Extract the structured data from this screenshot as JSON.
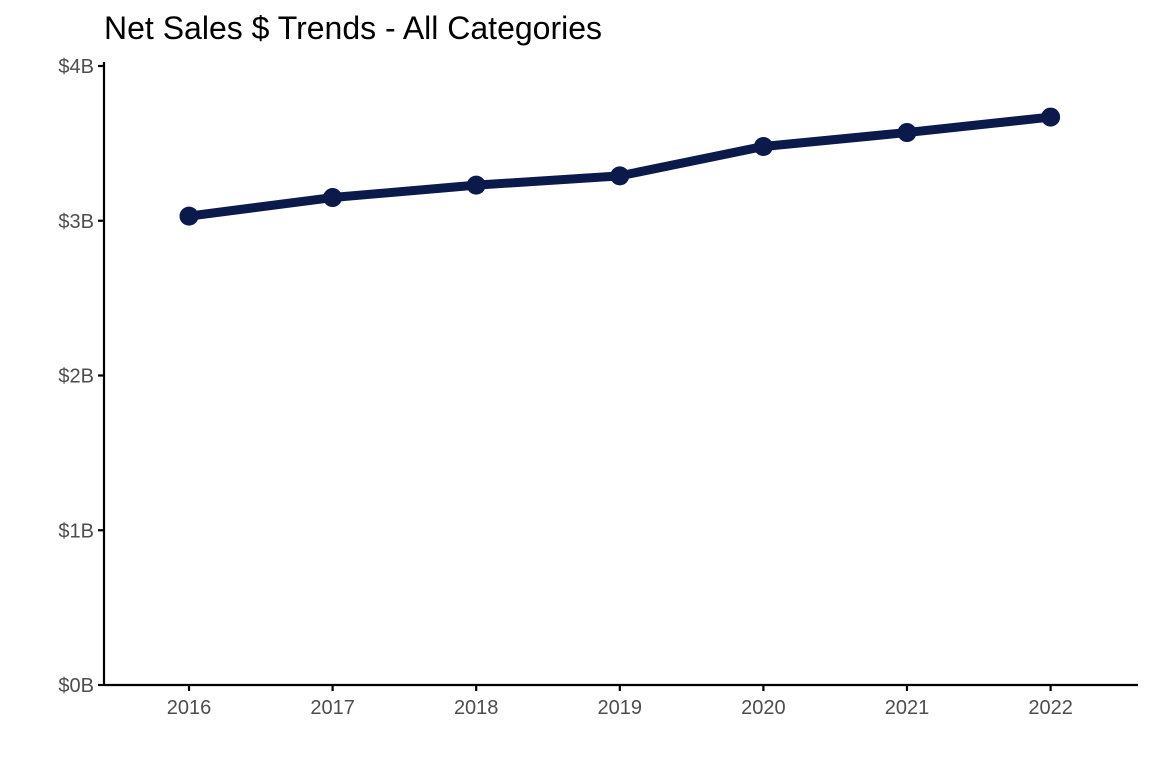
{
  "chart_data": {
    "type": "line",
    "title": "Net Sales $ Trends - All Categories",
    "xlabel": "",
    "ylabel": "",
    "x": [
      "2016",
      "2017",
      "2018",
      "2019",
      "2020",
      "2021",
      "2022"
    ],
    "series": [
      {
        "values": [
          3.03,
          3.15,
          3.23,
          3.29,
          3.48,
          3.57,
          3.67
        ],
        "color": "#0b1a4a"
      }
    ],
    "ylim": [
      0,
      4
    ],
    "y_ticks": [
      0,
      1,
      2,
      3,
      4
    ],
    "y_tick_labels": [
      "$0B",
      "$1B",
      "$2B",
      "$3B",
      "$4B"
    ],
    "grid": false,
    "legend": "none",
    "markers": true
  }
}
